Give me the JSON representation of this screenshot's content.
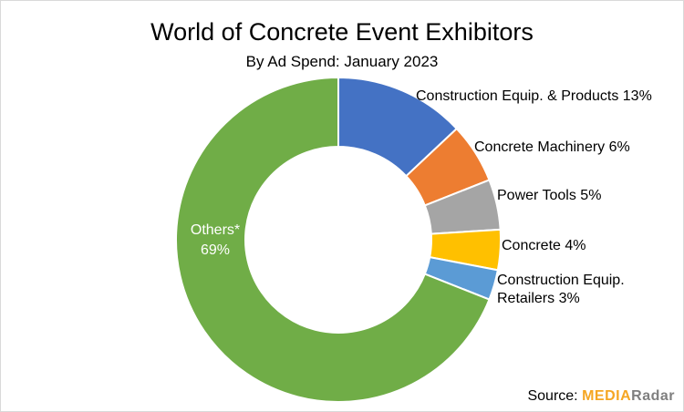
{
  "chart_data": {
    "type": "pie",
    "donut": true,
    "title": "World of Concrete Event Exhibitors",
    "subtitle": "By Ad Spend: January 2023",
    "slices": [
      {
        "label": "Construction Equip. & Products",
        "value": 13,
        "pct_label": "13%",
        "color": "#4472C4"
      },
      {
        "label": "Concrete Machinery",
        "value": 6,
        "pct_label": "6%",
        "color": "#ED7D31"
      },
      {
        "label": "Power Tools",
        "value": 5,
        "pct_label": "5%",
        "color": "#A5A5A5"
      },
      {
        "label": "Concrete",
        "value": 4,
        "pct_label": "4%",
        "color": "#FFC000"
      },
      {
        "label": "Construction Equip. Retailers",
        "value": 3,
        "pct_label": "3%",
        "color": "#5B9BD5"
      },
      {
        "label": "Others*",
        "value": 69,
        "pct_label": "69%",
        "color": "#70AD47"
      }
    ]
  },
  "footer": {
    "source_label": "Source:",
    "logo_part1": "MEDIA",
    "logo_part2": "Radar"
  }
}
